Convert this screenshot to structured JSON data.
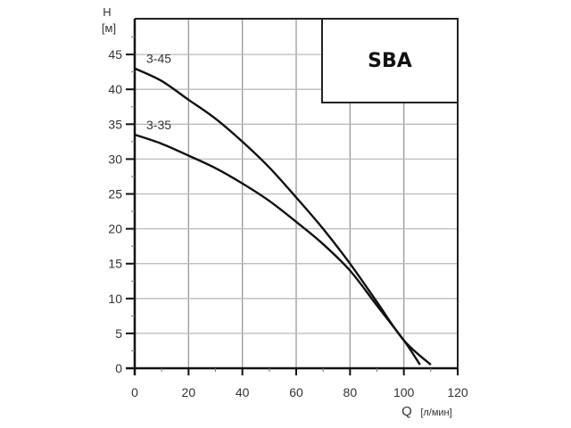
{
  "chart_data": {
    "type": "line",
    "title": "SBA",
    "xlabel": "Q",
    "xlabel_unit": "[л/мин]",
    "ylabel": "H",
    "ylabel_unit": "[м]",
    "xlim": [
      0,
      120
    ],
    "ylim": [
      0,
      50
    ],
    "x_ticks": [
      0,
      20,
      40,
      60,
      80,
      100,
      120
    ],
    "y_ticks": [
      0,
      5,
      10,
      15,
      20,
      25,
      30,
      35,
      40,
      45
    ],
    "grid": true,
    "series": [
      {
        "name": "3-45",
        "x": [
          0,
          10,
          20,
          30,
          40,
          50,
          60,
          70,
          80,
          90,
          100,
          110
        ],
        "y": [
          43,
          41.2,
          38.5,
          35.8,
          32.5,
          28.8,
          24.5,
          20,
          15,
          9.5,
          4,
          0.5
        ]
      },
      {
        "name": "3-35",
        "x": [
          0,
          10,
          20,
          30,
          40,
          50,
          60,
          70,
          80,
          90,
          100,
          106
        ],
        "y": [
          33.5,
          32.2,
          30.5,
          28.7,
          26.5,
          24,
          21,
          17.8,
          14,
          9,
          4,
          0.5
        ]
      }
    ]
  }
}
